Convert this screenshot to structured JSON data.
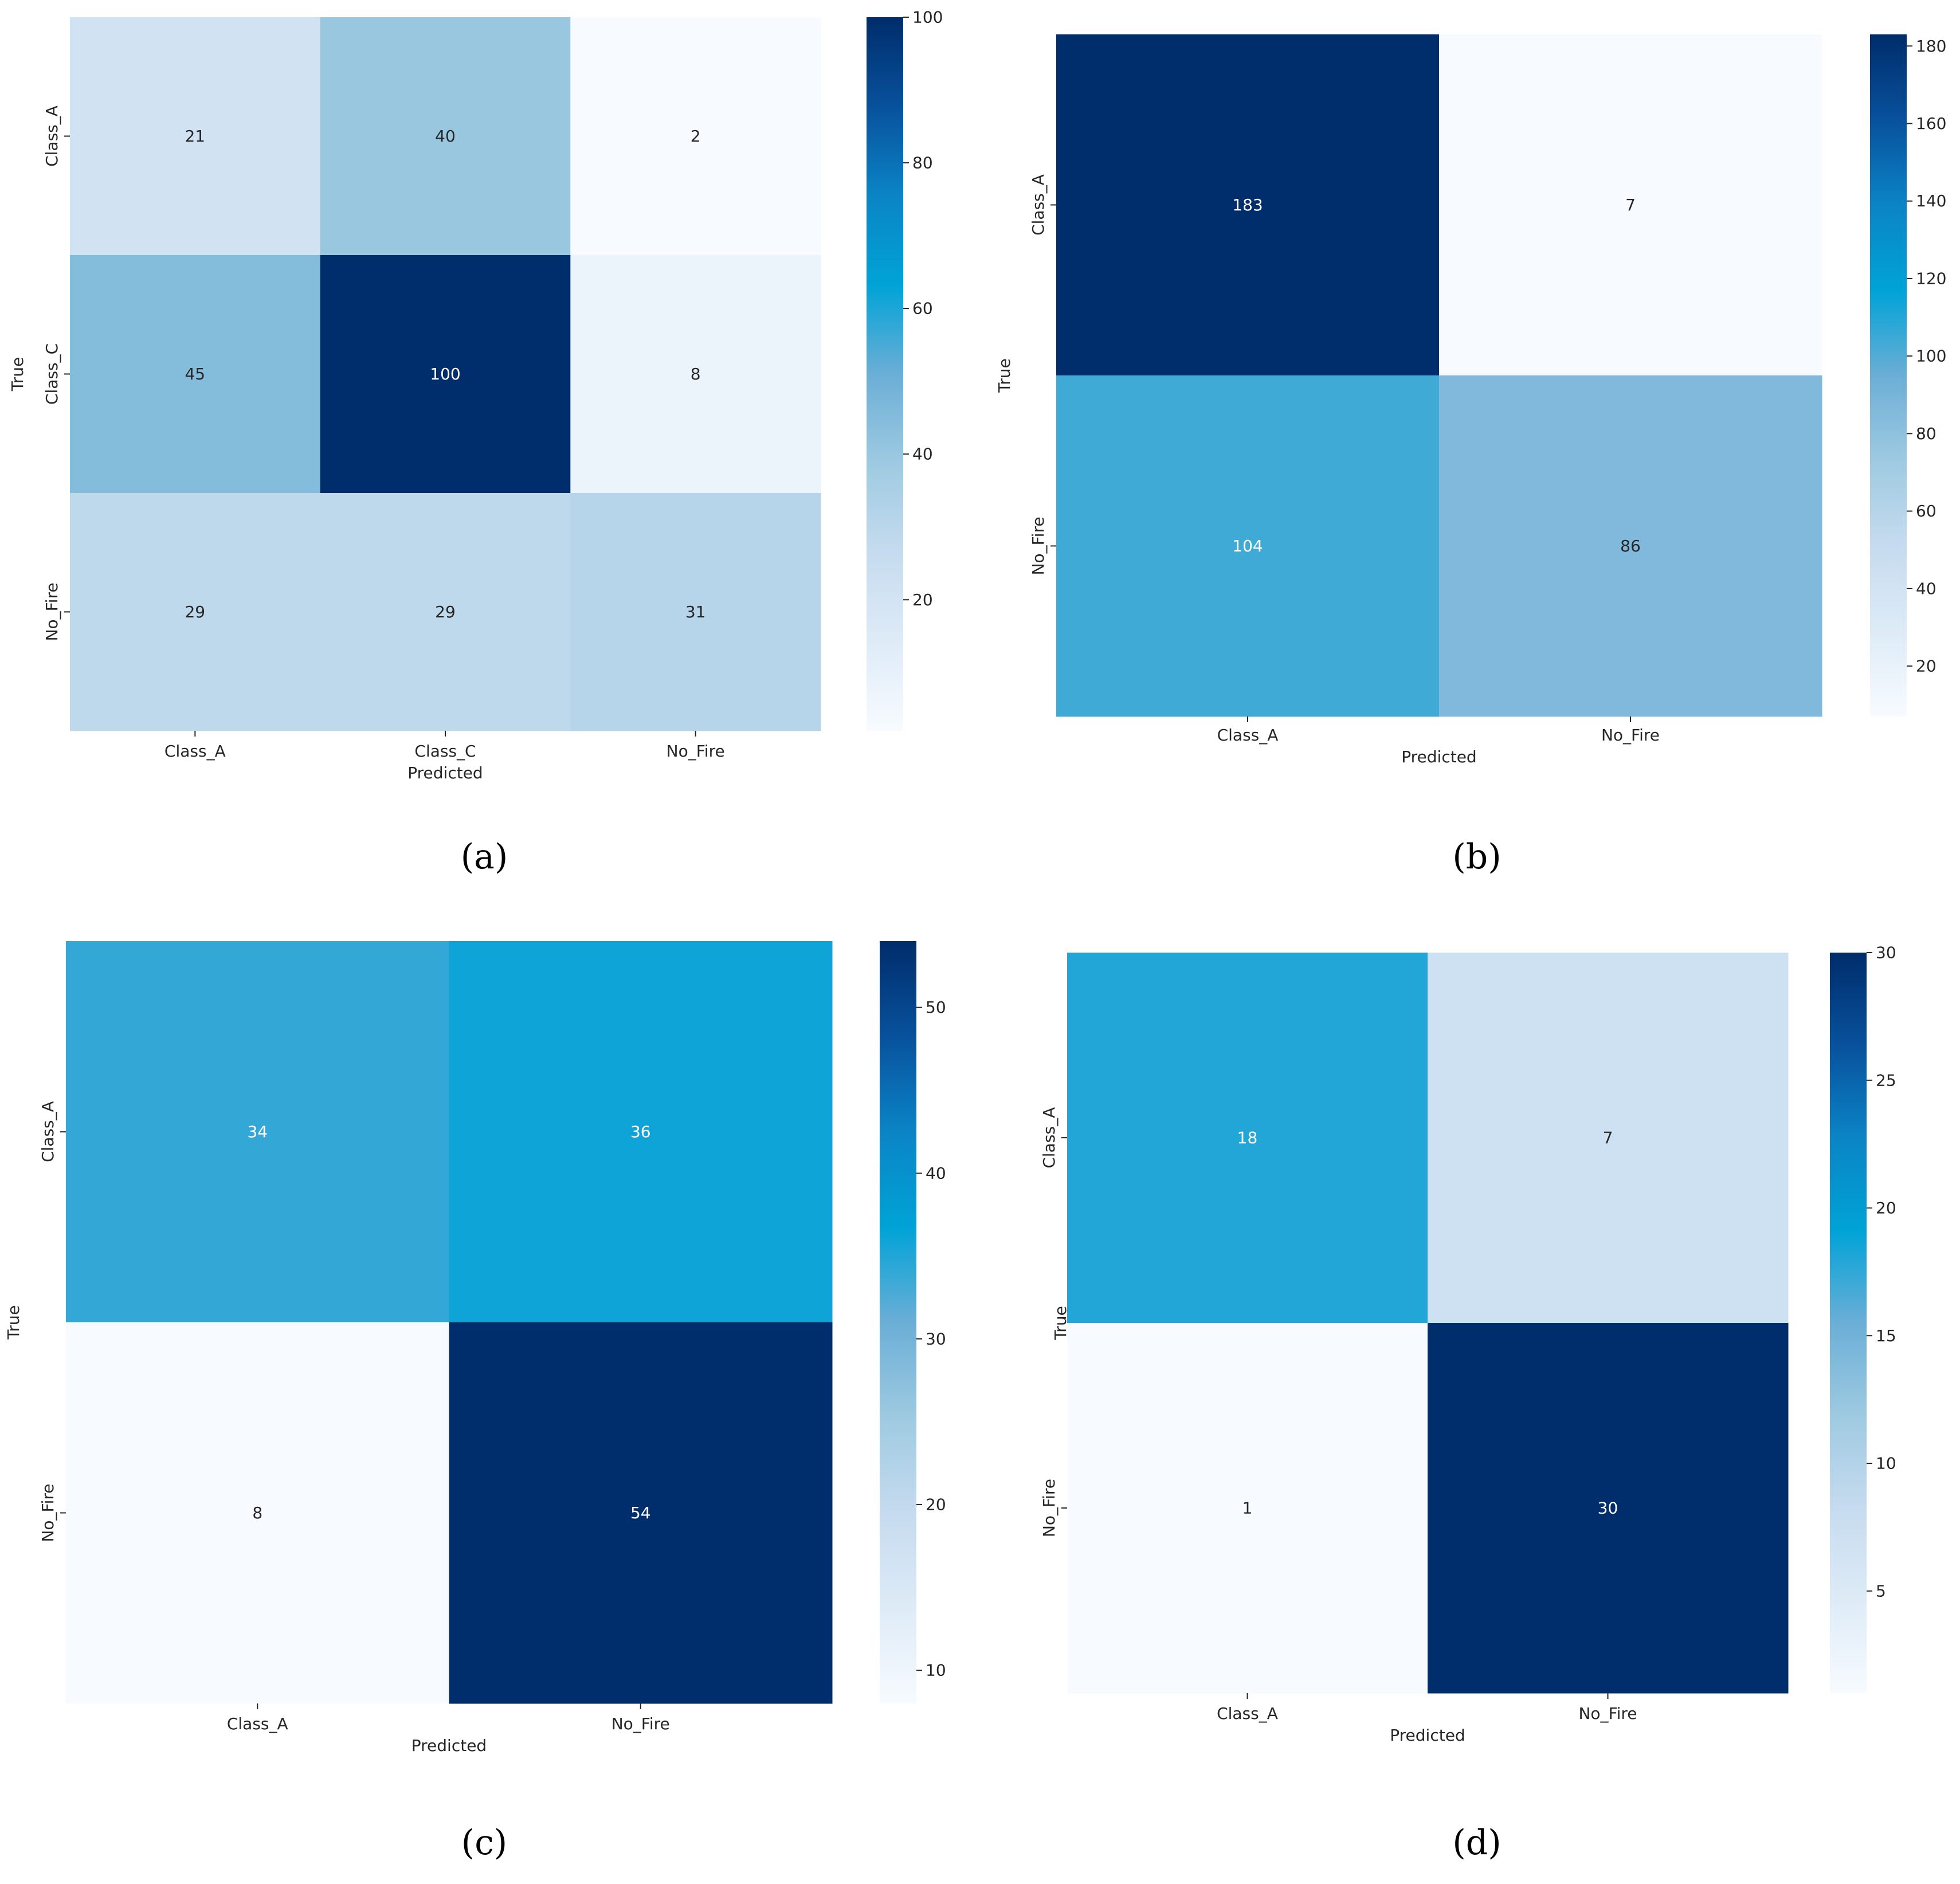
{
  "figure": {
    "colormap": {
      "name": "Blues",
      "stops": [
        "#f7fbff",
        "#deebf7",
        "#c6dbef",
        "#9ecae1",
        "#6baed6",
        "#00a3d7",
        "#0b84c6",
        "#08519c",
        "#002d6b"
      ]
    },
    "label_colors": {
      "dark": "#262626",
      "light": "#ffffff"
    }
  },
  "chart_data": [
    {
      "type": "heatmap",
      "caption_letter": "a",
      "xlabel": "Predicted",
      "ylabel": "True",
      "x_categories": [
        "Class_A",
        "Class_C",
        "No_Fire"
      ],
      "y_categories": [
        "Class_A",
        "Class_C",
        "No_Fire"
      ],
      "values": [
        [
          21,
          40,
          2
        ],
        [
          45,
          100,
          8
        ],
        [
          29,
          29,
          31
        ]
      ],
      "color_range": [
        2,
        100
      ],
      "colorbar_ticks": [
        20,
        40,
        60,
        80,
        100
      ]
    },
    {
      "type": "heatmap",
      "caption_letter": "b",
      "xlabel": "Predicted",
      "ylabel": "True",
      "x_categories": [
        "Class_A",
        "No_Fire"
      ],
      "y_categories": [
        "Class_A",
        "No_Fire"
      ],
      "values": [
        [
          183,
          7
        ],
        [
          104,
          86
        ]
      ],
      "color_range": [
        7,
        183
      ],
      "colorbar_ticks": [
        20,
        40,
        60,
        80,
        100,
        120,
        140,
        160,
        180
      ]
    },
    {
      "type": "heatmap",
      "caption_letter": "c",
      "xlabel": "Predicted",
      "ylabel": "True",
      "x_categories": [
        "Class_A",
        "No_Fire"
      ],
      "y_categories": [
        "Class_A",
        "No_Fire"
      ],
      "values": [
        [
          34,
          36
        ],
        [
          8,
          54
        ]
      ],
      "color_range": [
        8,
        54
      ],
      "colorbar_ticks": [
        10,
        20,
        30,
        40,
        50
      ]
    },
    {
      "type": "heatmap",
      "caption_letter": "d",
      "xlabel": "Predicted",
      "ylabel": "True",
      "x_categories": [
        "Class_A",
        "No_Fire"
      ],
      "y_categories": [
        "Class_A",
        "No_Fire"
      ],
      "values": [
        [
          18,
          7
        ],
        [
          1,
          30
        ]
      ],
      "color_range": [
        1,
        30
      ],
      "colorbar_ticks": [
        5,
        10,
        15,
        20,
        25,
        30
      ]
    }
  ]
}
